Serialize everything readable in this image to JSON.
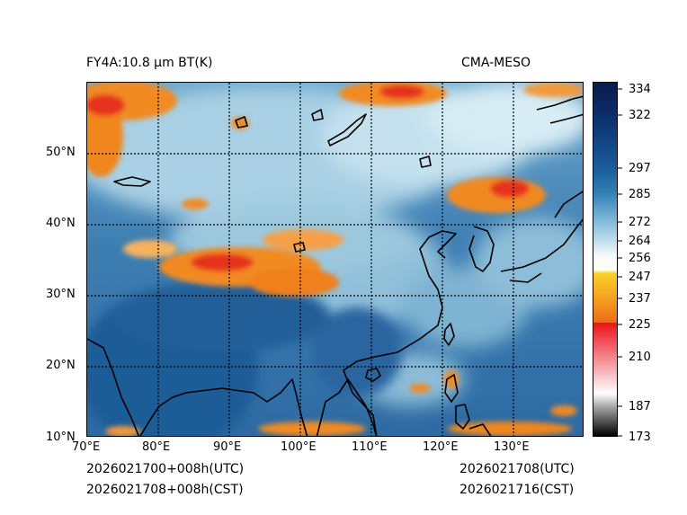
{
  "header": {
    "left_title": "FY4A:10.8 μm BT(K)",
    "right_title": "CMA-MESO"
  },
  "footer": {
    "init_utc": "2026021700+008h(UTC)",
    "init_cst": "2026021708+008h(CST)",
    "valid_utc": "2026021708(UTC)",
    "valid_cst": "2026021716(CST)"
  },
  "map": {
    "lon_labels": [
      "70°E",
      "80°E",
      "90°E",
      "100°E",
      "110°E",
      "120°E",
      "130°E"
    ],
    "lat_labels": [
      "50°N",
      "40°N",
      "30°N",
      "20°N",
      "10°N"
    ],
    "lon_range": [
      70,
      140
    ],
    "lat_range": [
      10,
      60
    ]
  },
  "colorbar": {
    "ticks": [
      "334",
      "322",
      "297",
      "285",
      "272",
      "264",
      "256",
      "247",
      "237",
      "225",
      "210",
      "187",
      "173"
    ],
    "range": [
      173,
      338
    ]
  },
  "colors": {
    "ocean": "#2f6ea5",
    "land_cold": "#1e5590",
    "cloud_light": "#a8cfe3",
    "cloud_high_orange": "#f28a22",
    "cloud_high_red": "#e5321c",
    "coast": "#000000"
  }
}
